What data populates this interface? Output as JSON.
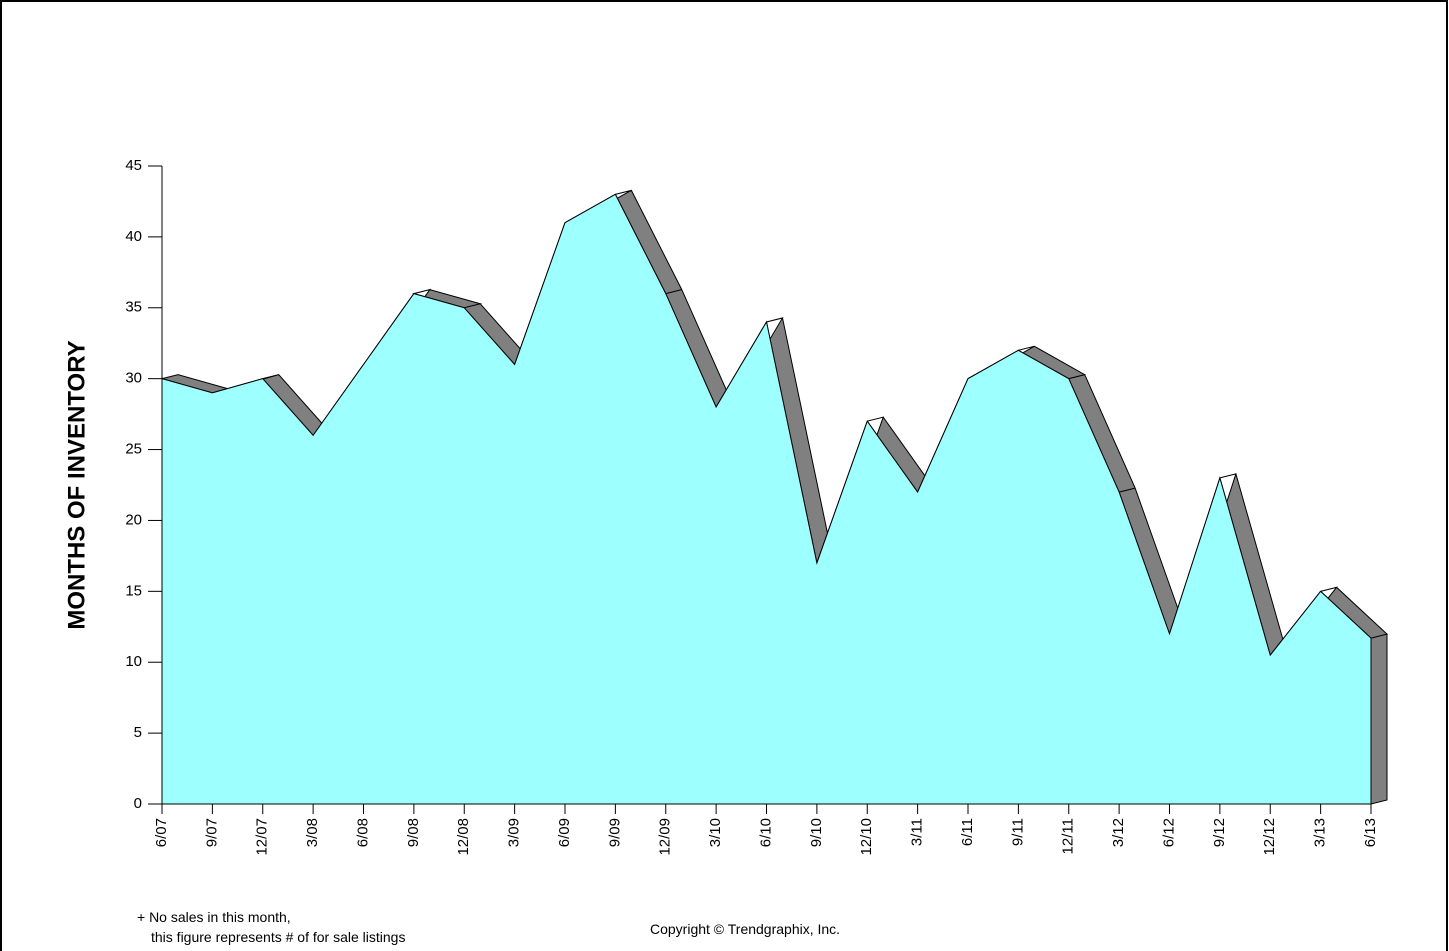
{
  "chart_data": {
    "type": "area",
    "y_label": "MONTHS OF INVENTORY",
    "categories": [
      "6/07",
      "9/07",
      "12/07",
      "3/08",
      "6/08",
      "9/08",
      "12/08",
      "3/09",
      "6/09",
      "9/09",
      "12/09",
      "3/10",
      "6/10",
      "9/10",
      "12/10",
      "3/11",
      "6/11",
      "9/11",
      "12/11",
      "3/12",
      "6/12",
      "9/12",
      "12/12",
      "3/13",
      "6/13"
    ],
    "values": [
      30,
      29,
      30,
      26,
      31,
      36,
      35,
      31,
      41,
      43,
      36,
      28,
      34,
      17,
      27,
      22,
      30,
      32,
      30,
      22,
      12,
      23,
      10.5,
      15,
      11.7
    ],
    "color": "#9effff",
    "depth_color": "#808080",
    "ylim": [
      0,
      45
    ],
    "yticks": [
      0,
      5,
      10,
      15,
      20,
      25,
      30,
      35,
      40,
      45
    ],
    "footnote_line1": "+ No sales in this month,",
    "footnote_line2": "this figure represents # of for sale listings",
    "copyright": "Copyright © Trendgraphix, Inc."
  }
}
